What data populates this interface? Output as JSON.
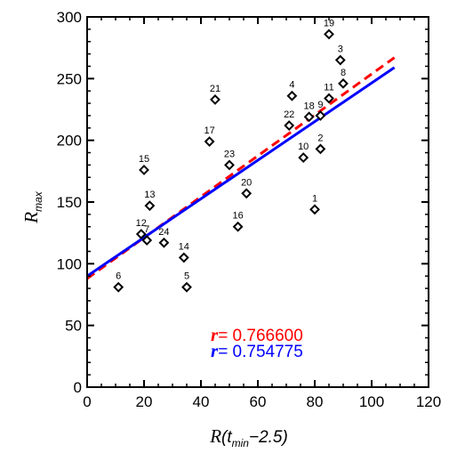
{
  "chart_data": {
    "type": "scatter",
    "title": "",
    "xlabel": {
      "symbol": "R",
      "open": "(t",
      "subscript": "min",
      "rest": "−2.5)"
    },
    "ylabel": {
      "symbol": "R",
      "subscript": "max"
    },
    "xlim": [
      0,
      120
    ],
    "ylim": [
      0,
      300
    ],
    "x_ticks": [
      "0",
      "20",
      "40",
      "60",
      "80",
      "100",
      "120"
    ],
    "y_ticks": [
      "0",
      "50",
      "100",
      "150",
      "200",
      "250",
      "300"
    ],
    "points": [
      {
        "label": "1",
        "x": 80,
        "y": 144
      },
      {
        "label": "2",
        "x": 82,
        "y": 193
      },
      {
        "label": "3",
        "x": 89,
        "y": 265
      },
      {
        "label": "4",
        "x": 72,
        "y": 236
      },
      {
        "label": "5",
        "x": 35,
        "y": 81
      },
      {
        "label": "6",
        "x": 11,
        "y": 81
      },
      {
        "label": "7",
        "x": 21,
        "y": 119
      },
      {
        "label": "8",
        "x": 90,
        "y": 246
      },
      {
        "label": "9",
        "x": 82,
        "y": 220
      },
      {
        "label": "10",
        "x": 76,
        "y": 186
      },
      {
        "label": "11",
        "x": 85,
        "y": 234
      },
      {
        "label": "12",
        "x": 19,
        "y": 124
      },
      {
        "label": "13",
        "x": 22,
        "y": 147
      },
      {
        "label": "14",
        "x": 34,
        "y": 105
      },
      {
        "label": "15",
        "x": 20,
        "y": 176
      },
      {
        "label": "16",
        "x": 53,
        "y": 130
      },
      {
        "label": "17",
        "x": 43,
        "y": 199
      },
      {
        "label": "18",
        "x": 78,
        "y": 219
      },
      {
        "label": "19",
        "x": 85,
        "y": 286
      },
      {
        "label": "20",
        "x": 56,
        "y": 157
      },
      {
        "label": "21",
        "x": 45,
        "y": 233
      },
      {
        "label": "22",
        "x": 71,
        "y": 212
      },
      {
        "label": "23",
        "x": 50,
        "y": 180
      },
      {
        "label": "24",
        "x": 27,
        "y": 117
      }
    ],
    "fit_lines": [
      {
        "style": "dashed",
        "color": "#ff0000",
        "x": [
          0,
          108
        ],
        "y": [
          88,
          267
        ]
      },
      {
        "style": "solid",
        "color": "#0000ff",
        "x": [
          0,
          108
        ],
        "y": [
          90,
          259
        ]
      }
    ],
    "annotations": [
      {
        "symbol": "r",
        "text": "= 0.766600",
        "color": "#ff0000"
      },
      {
        "symbol": "r",
        "text": "= 0.754775",
        "color": "#0000ff"
      }
    ],
    "grid": false,
    "marker": "open-diamond"
  }
}
